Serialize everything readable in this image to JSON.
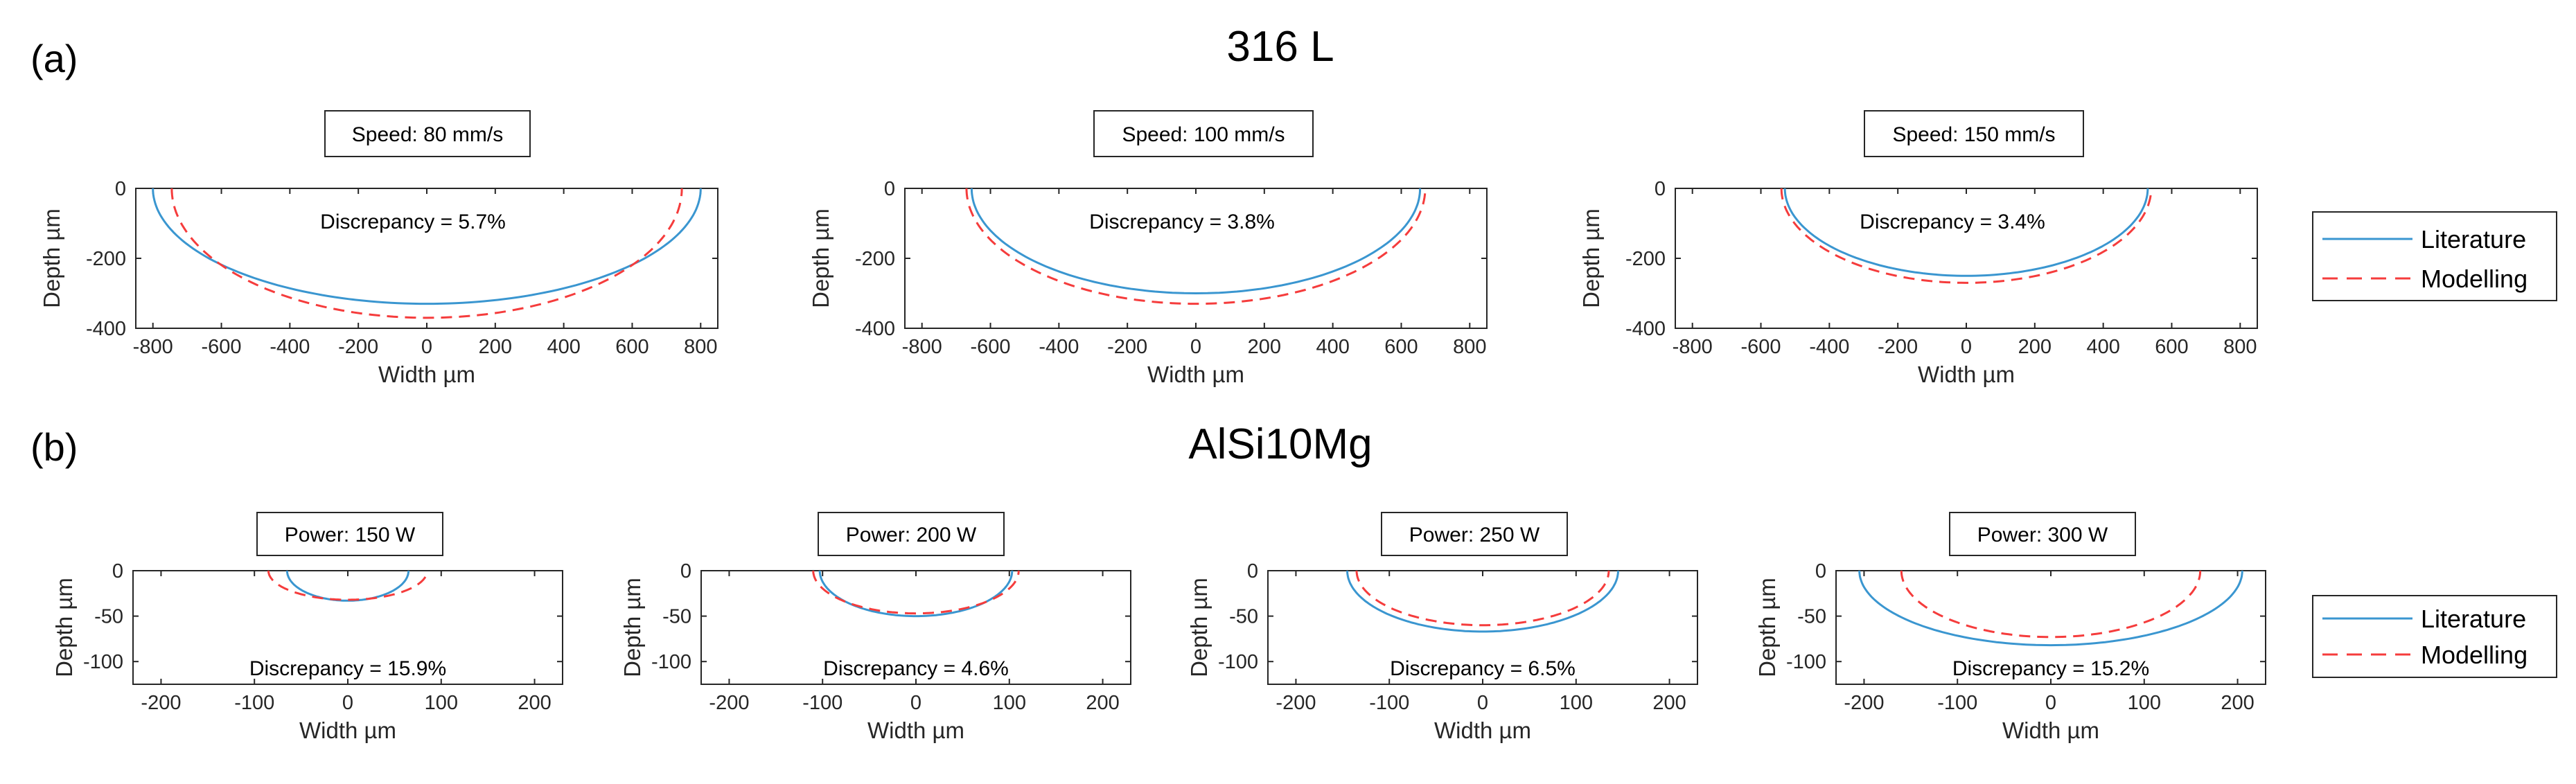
{
  "panel_a": {
    "tag": "(a)",
    "title": "316 L"
  },
  "panel_b": {
    "tag": "(b)",
    "title": "AlSi10Mg"
  },
  "legend": {
    "literature": "Literature",
    "modelling": "Modelling",
    "literature_color": "#3a96d0",
    "modelling_color": "#f53c3c"
  },
  "chart_data": [
    {
      "type": "line",
      "row": "a",
      "label": "Speed: 80 mm/s",
      "discrepancy": "Discrepancy = 5.7%",
      "xlabel": "Width µm",
      "ylabel": "Depth µm",
      "xlim": [
        -850,
        850
      ],
      "ylim": [
        -400,
        0
      ],
      "xticks": [
        -800,
        -600,
        -400,
        -200,
        0,
        200,
        400,
        600,
        800
      ],
      "yticks": [
        0,
        -200,
        -400
      ],
      "series": [
        {
          "name": "Literature",
          "half_width": 800,
          "depth": 330
        },
        {
          "name": "Modelling",
          "half_width": 745,
          "depth": 370
        }
      ]
    },
    {
      "type": "line",
      "row": "a",
      "label": "Speed: 100 mm/s",
      "discrepancy": "Discrepancy = 3.8%",
      "xlabel": "Width µm",
      "ylabel": "Depth µm",
      "xlim": [
        -850,
        850
      ],
      "ylim": [
        -400,
        0
      ],
      "xticks": [
        -800,
        -600,
        -400,
        -200,
        0,
        200,
        400,
        600,
        800
      ],
      "yticks": [
        0,
        -200,
        -400
      ],
      "series": [
        {
          "name": "Literature",
          "half_width": 655,
          "depth": 300
        },
        {
          "name": "Modelling",
          "half_width": 670,
          "depth": 330
        }
      ]
    },
    {
      "type": "line",
      "row": "a",
      "label": "Speed: 150 mm/s",
      "discrepancy": "Discrepancy = 3.4%",
      "xlabel": "Width µm",
      "ylabel": "Depth µm",
      "xlim": [
        -850,
        850
      ],
      "ylim": [
        -400,
        0
      ],
      "xticks": [
        -800,
        -600,
        -400,
        -200,
        0,
        200,
        400,
        600,
        800
      ],
      "yticks": [
        0,
        -200,
        -400
      ],
      "series": [
        {
          "name": "Literature",
          "half_width": 530,
          "depth": 250
        },
        {
          "name": "Modelling",
          "half_width": 540,
          "depth": 270
        }
      ]
    },
    {
      "type": "line",
      "row": "b",
      "label": "Power: 150 W",
      "discrepancy": "Discrepancy = 15.9%",
      "xlabel": "Width µm",
      "ylabel": "Depth µm",
      "xlim": [
        -230,
        230
      ],
      "ylim": [
        -125,
        0
      ],
      "xticks": [
        -200,
        -100,
        0,
        100,
        200
      ],
      "yticks": [
        0,
        -50,
        -100
      ],
      "series": [
        {
          "name": "Literature",
          "half_width": 65,
          "depth": 33
        },
        {
          "name": "Modelling",
          "half_width": 85,
          "depth": 32
        }
      ]
    },
    {
      "type": "line",
      "row": "b",
      "label": "Power: 200 W",
      "discrepancy": "Discrepancy = 4.6%",
      "xlabel": "Width µm",
      "ylabel": "Depth µm",
      "xlim": [
        -230,
        230
      ],
      "ylim": [
        -125,
        0
      ],
      "xticks": [
        -200,
        -100,
        0,
        100,
        200
      ],
      "yticks": [
        0,
        -50,
        -100
      ],
      "series": [
        {
          "name": "Literature",
          "half_width": 103,
          "depth": 50
        },
        {
          "name": "Modelling",
          "half_width": 110,
          "depth": 47
        }
      ]
    },
    {
      "type": "line",
      "row": "b",
      "label": "Power: 250 W",
      "discrepancy": "Discrepancy = 6.5%",
      "xlabel": "Width µm",
      "ylabel": "Depth µm",
      "xlim": [
        -230,
        230
      ],
      "ylim": [
        -125,
        0
      ],
      "xticks": [
        -200,
        -100,
        0,
        100,
        200
      ],
      "yticks": [
        0,
        -50,
        -100
      ],
      "series": [
        {
          "name": "Literature",
          "half_width": 145,
          "depth": 67
        },
        {
          "name": "Modelling",
          "half_width": 135,
          "depth": 60
        }
      ]
    },
    {
      "type": "line",
      "row": "b",
      "label": "Power: 300 W",
      "discrepancy": "Discrepancy = 15.2%",
      "xlabel": "Width µm",
      "ylabel": "Depth µm",
      "xlim": [
        -230,
        230
      ],
      "ylim": [
        -125,
        0
      ],
      "xticks": [
        -200,
        -100,
        0,
        100,
        200
      ],
      "yticks": [
        0,
        -50,
        -100
      ],
      "series": [
        {
          "name": "Literature",
          "half_width": 205,
          "depth": 82
        },
        {
          "name": "Modelling",
          "half_width": 160,
          "depth": 73
        }
      ]
    }
  ]
}
